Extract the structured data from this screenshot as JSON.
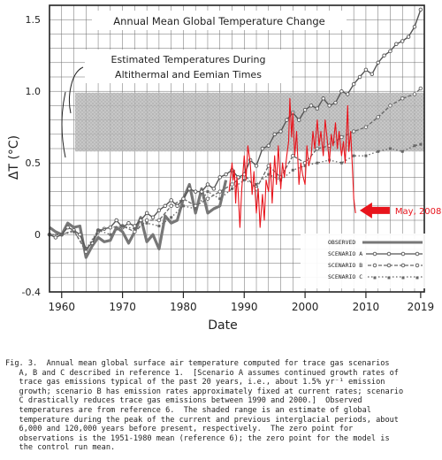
{
  "chart_data": {
    "type": "line",
    "title": "Annual Mean Global Temperature Change",
    "xlabel": "Date",
    "ylabel": "ΔT (°C)",
    "xlim": [
      1958,
      2019.6
    ],
    "ylim": [
      -0.4,
      1.6
    ],
    "x_ticks": [
      "1960",
      "1970",
      "1980",
      "1990",
      "2000",
      "2010",
      "2019"
    ],
    "x_tick_values": [
      1960,
      1970,
      1980,
      1990,
      2000,
      2010,
      2019
    ],
    "y_ticks": [
      "-0.4",
      "0",
      "0.5",
      "1.0",
      "1.5"
    ],
    "y_tick_values": [
      -0.4,
      0,
      0.5,
      1.0,
      1.5
    ],
    "band_annotation": "Estimated Temperatures During\nAltithermal and Eemian Times",
    "shaded_band": [
      0.58,
      0.99
    ],
    "series": [
      {
        "name": "OBSERVED",
        "style": "thick",
        "color": "#777777",
        "x": [
          1958,
          1959,
          1960,
          1961,
          1962,
          1963,
          1964,
          1965,
          1966,
          1967,
          1968,
          1969,
          1970,
          1971,
          1972,
          1973,
          1974,
          1975,
          1976,
          1977,
          1978,
          1979,
          1980,
          1981,
          1982,
          1983,
          1984,
          1985,
          1986,
          1987
        ],
        "y": [
          0.05,
          0.02,
          0.0,
          0.08,
          0.05,
          0.06,
          -0.16,
          -0.08,
          -0.02,
          -0.05,
          -0.04,
          0.05,
          0.02,
          -0.06,
          0.02,
          0.12,
          -0.05,
          0.0,
          -0.1,
          0.13,
          0.08,
          0.1,
          0.25,
          0.35,
          0.15,
          0.32,
          0.15,
          0.18,
          0.2,
          0.38
        ]
      },
      {
        "name": "SCENARIO A",
        "style": "solid-circle",
        "color": "#555555",
        "x": [
          1958,
          1959,
          1960,
          1961,
          1962,
          1963,
          1964,
          1965,
          1966,
          1967,
          1968,
          1969,
          1970,
          1971,
          1972,
          1973,
          1974,
          1975,
          1976,
          1977,
          1978,
          1979,
          1980,
          1981,
          1982,
          1983,
          1984,
          1985,
          1986,
          1987,
          1988,
          1989,
          1990,
          1991,
          1992,
          1993,
          1994,
          1995,
          1996,
          1997,
          1998,
          1999,
          2000,
          2001,
          2002,
          2003,
          2004,
          2005,
          2006,
          2007,
          2008,
          2009,
          2010,
          2011,
          2012,
          2013,
          2014,
          2015,
          2016,
          2017,
          2018,
          2019
        ],
        "y": [
          0.0,
          -0.02,
          0.0,
          0.05,
          0.03,
          0.0,
          -0.1,
          -0.06,
          0.02,
          0.04,
          0.05,
          0.1,
          0.05,
          0.08,
          0.06,
          0.1,
          0.15,
          0.12,
          0.17,
          0.2,
          0.24,
          0.2,
          0.25,
          0.32,
          0.3,
          0.3,
          0.35,
          0.32,
          0.4,
          0.42,
          0.45,
          0.4,
          0.42,
          0.52,
          0.48,
          0.6,
          0.62,
          0.7,
          0.72,
          0.8,
          0.85,
          0.8,
          0.87,
          0.9,
          0.88,
          0.95,
          0.9,
          0.92,
          1.0,
          0.98,
          1.05,
          1.1,
          1.15,
          1.12,
          1.2,
          1.25,
          1.28,
          1.33,
          1.35,
          1.38,
          1.45,
          1.57
        ]
      },
      {
        "name": "SCENARIO B",
        "style": "dashed-circle",
        "color": "#666666",
        "x": [
          1958,
          1960,
          1962,
          1964,
          1966,
          1968,
          1970,
          1972,
          1974,
          1976,
          1978,
          1980,
          1982,
          1984,
          1986,
          1988,
          1990,
          1992,
          1994,
          1996,
          1998,
          2000,
          2002,
          2004,
          2006,
          2008,
          2010,
          2012,
          2014,
          2016,
          2018,
          2019
        ],
        "y": [
          0.0,
          0.0,
          0.03,
          -0.12,
          0.03,
          0.05,
          0.06,
          0.02,
          0.1,
          0.1,
          0.2,
          0.25,
          0.2,
          0.25,
          0.3,
          0.35,
          0.42,
          0.32,
          0.48,
          0.4,
          0.55,
          0.5,
          0.6,
          0.62,
          0.68,
          0.72,
          0.75,
          0.82,
          0.9,
          0.95,
          0.98,
          1.02
        ]
      },
      {
        "name": "SCENARIO C",
        "style": "dotted-square",
        "color": "#666666",
        "x": [
          1958,
          1960,
          1962,
          1964,
          1966,
          1968,
          1970,
          1972,
          1974,
          1976,
          1978,
          1980,
          1982,
          1984,
          1986,
          1988,
          1990,
          1992,
          1994,
          1996,
          1998,
          2000,
          2002,
          2004,
          2006,
          2008,
          2010,
          2012,
          2014,
          2016,
          2018,
          2019
        ],
        "y": [
          0.0,
          0.0,
          0.02,
          -0.1,
          0.03,
          0.0,
          0.06,
          0.04,
          0.08,
          0.06,
          0.12,
          0.2,
          0.18,
          0.3,
          0.25,
          0.32,
          0.38,
          0.35,
          0.42,
          0.38,
          0.45,
          0.48,
          0.5,
          0.52,
          0.5,
          0.55,
          0.55,
          0.58,
          0.6,
          0.58,
          0.62,
          0.63
        ]
      },
      {
        "name": "Observed (monthly overlay)",
        "style": "red",
        "color": "#e8141c",
        "x": [
          1987.5,
          1988,
          1988.2,
          1988.4,
          1988.6,
          1988.8,
          1989,
          1989.3,
          1989.6,
          1990,
          1990.3,
          1990.6,
          1991,
          1991.3,
          1991.6,
          1992,
          1992.3,
          1992.6,
          1993,
          1993.3,
          1993.6,
          1994,
          1994.3,
          1994.6,
          1995,
          1995.3,
          1995.6,
          1996,
          1996.3,
          1996.6,
          1997,
          1997.3,
          1997.5,
          1997.8,
          1998,
          1998.3,
          1998.6,
          1999,
          1999.3,
          1999.6,
          2000,
          2000.3,
          2000.6,
          2001,
          2001.3,
          2001.6,
          2002,
          2002.3,
          2002.6,
          2003,
          2003.3,
          2003.6,
          2004,
          2004.3,
          2004.6,
          2005,
          2005.3,
          2005.6,
          2006,
          2006.3,
          2006.6,
          2007,
          2007.2,
          2007.5,
          2007.8,
          2008,
          2008.3
        ],
        "y": [
          0.3,
          0.5,
          0.38,
          0.45,
          0.22,
          0.4,
          0.3,
          0.05,
          0.32,
          0.55,
          0.38,
          0.62,
          0.5,
          0.28,
          0.44,
          0.15,
          0.32,
          0.05,
          0.28,
          0.1,
          0.38,
          0.3,
          0.5,
          0.22,
          0.55,
          0.35,
          0.62,
          0.32,
          0.5,
          0.4,
          0.55,
          0.65,
          0.95,
          0.68,
          0.85,
          0.55,
          0.72,
          0.35,
          0.5,
          0.42,
          0.35,
          0.62,
          0.48,
          0.55,
          0.72,
          0.6,
          0.8,
          0.62,
          0.72,
          0.55,
          0.8,
          0.68,
          0.5,
          0.7,
          0.62,
          0.78,
          0.6,
          0.72,
          0.55,
          0.65,
          0.5,
          0.9,
          0.58,
          0.72,
          0.45,
          0.25,
          0.15
        ]
      }
    ],
    "legend": {
      "placement": "bottom-right",
      "entries": [
        "OBSERVED",
        "SCENARIO A",
        "SCENARIO B",
        "SCENARIO C"
      ]
    },
    "callout": {
      "text": "May, 2008",
      "color": "#e8141c",
      "x": 2008.4,
      "y": 0.15
    }
  },
  "caption": "Fig. 3.  Annual mean global surface air temperature computed for trace gas scenarios\n   A, B and C described in reference 1.  [Scenario A assumes continued growth rates of\n   trace gas emissions typical of the past 20 years, i.e., about 1.5% yr⁻¹ emission\n   growth; scenario B has emission rates approximately fixed at current rates; scenario\n   C drastically reduces trace gas emissions between 1990 and 2000.]  Observed\n   temperatures are from reference 6.  The shaded range is an estimate of global\n   temperature during the peak of the current and previous interglacial periods, about\n   6,000 and 120,000 years before present, respectively.  The zero point for\n   observations is the 1951-1980 mean (reference 6); the zero point for the model is\n   the control run mean."
}
